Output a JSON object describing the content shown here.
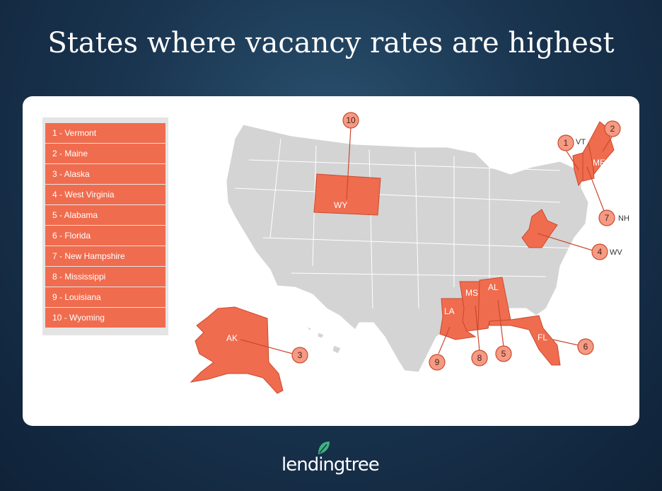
{
  "title": "States where vacancy rates are highest",
  "legend": [
    {
      "rank": 1,
      "label": "1 - Vermont"
    },
    {
      "rank": 2,
      "label": "2 - Maine"
    },
    {
      "rank": 3,
      "label": "3 - Alaska"
    },
    {
      "rank": 4,
      "label": "4 - West Virginia"
    },
    {
      "rank": 5,
      "label": "5 - Alabama"
    },
    {
      "rank": 6,
      "label": "6 - Florida"
    },
    {
      "rank": 7,
      "label": "7 - New Hampshire"
    },
    {
      "rank": 8,
      "label": "8 - Mississippi"
    },
    {
      "rank": 9,
      "label": "9 - Louisiana"
    },
    {
      "rank": 10,
      "label": "10 - Wyoming"
    }
  ],
  "states": {
    "wy": {
      "abbr": "WY",
      "rank": "10"
    },
    "ak": {
      "abbr": "AK",
      "rank": "3"
    },
    "wv": {
      "abbr": "WV",
      "rank": "4"
    },
    "vt": {
      "abbr": "VT",
      "rank": "1"
    },
    "me": {
      "abbr": "ME",
      "rank": "2"
    },
    "nh": {
      "abbr": "NH",
      "rank": "7"
    },
    "al": {
      "abbr": "AL",
      "rank": "5"
    },
    "fl": {
      "abbr": "FL",
      "rank": "6"
    },
    "ms": {
      "abbr": "MS",
      "rank": "8"
    },
    "la": {
      "abbr": "LA",
      "rank": "9"
    }
  },
  "colors": {
    "highlight": "#f06c4e",
    "base_state": "#d4d4d4",
    "callout": "#f59a83",
    "brand_green": "#3fb37f"
  },
  "logo": "lendingtree"
}
